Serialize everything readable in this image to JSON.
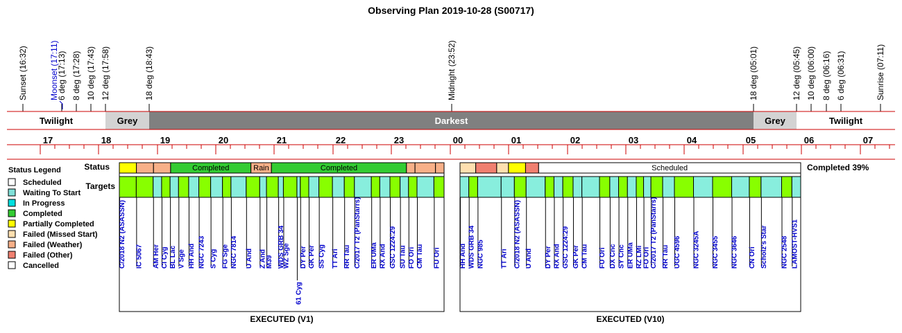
{
  "title": "Observing Plan 2019-10-28 (S00717)",
  "colors": {
    "scheduled": "#ffffff",
    "waiting": "#80e0d8",
    "in_progress": "#00e0e0",
    "completed": "#33cc33",
    "partial": "#ffff00",
    "failed_missed": "#ffe0b0",
    "failed_weather": "#f8b088",
    "failed_other": "#f08070",
    "cancelled": "#ffffff",
    "target_lime": "#88ff00",
    "target_teal": "#88eedd",
    "twilight": "#ffffff",
    "grey": "#d3d3d3",
    "darkest": "#808080",
    "timeline_line": "#cc0000",
    "target_text": "#0000cc"
  },
  "events": [
    {
      "label": "Sunset (16:32)",
      "type": "black"
    },
    {
      "label": "Moonset (17:11)",
      "type": "blue"
    },
    {
      "label": "6 deg (17:13)",
      "type": "black"
    },
    {
      "label": "8 deg (17:28)",
      "type": "black"
    },
    {
      "label": "10 deg (17:43)",
      "type": "black"
    },
    {
      "label": "12 deg (17:58)",
      "type": "black"
    },
    {
      "label": "18 deg (18:43)",
      "type": "black"
    },
    {
      "label": "Midnight (23:52)",
      "type": "black"
    },
    {
      "label": "18 deg (05:01)",
      "type": "black"
    },
    {
      "label": "12 deg (05:45)",
      "type": "black"
    },
    {
      "label": "10 deg (06:00)",
      "type": "black"
    },
    {
      "label": "8 deg (06:16)",
      "type": "black"
    },
    {
      "label": "6 deg (06:31)",
      "type": "black"
    },
    {
      "label": "Sunrise (07:11)",
      "type": "black"
    }
  ],
  "bands": [
    {
      "label": "Twilight",
      "kind": "twilight"
    },
    {
      "label": "Grey",
      "kind": "grey"
    },
    {
      "label": "Darkest",
      "kind": "darkest"
    },
    {
      "label": "Grey",
      "kind": "grey"
    },
    {
      "label": "Twilight",
      "kind": "twilight"
    }
  ],
  "hours": [
    "17",
    "18",
    "19",
    "20",
    "21",
    "22",
    "23",
    "00",
    "01",
    "02",
    "03",
    "04",
    "05",
    "06",
    "07"
  ],
  "row_labels": {
    "status": "Status",
    "targets": "Targets"
  },
  "legend": {
    "title": "Status Legend",
    "items": [
      {
        "label": "Scheduled",
        "color": "#ffffff"
      },
      {
        "label": "Waiting To Start",
        "color": "#80e0d8"
      },
      {
        "label": "In Progress",
        "color": "#00e0e0"
      },
      {
        "label": "Completed",
        "color": "#33cc33"
      },
      {
        "label": "Partially Completed",
        "color": "#ffff00"
      },
      {
        "label": "Failed (Missed Start)",
        "color": "#ffe0b0"
      },
      {
        "label": "Failed (Weather)",
        "color": "#f8b088"
      },
      {
        "label": "Failed (Other)",
        "color": "#f08070"
      },
      {
        "label": "Cancelled",
        "color": "#ffffff"
      }
    ]
  },
  "completed_text": "Completed 39%",
  "panels": [
    {
      "title": "EXECUTED (V1)",
      "status": [
        {
          "w": 1,
          "status": "partial",
          "label": ""
        },
        {
          "w": 1,
          "status": "failed_weather",
          "label": ""
        },
        {
          "w": 1,
          "status": "failed_weather",
          "label": ""
        },
        {
          "w": 4.7,
          "status": "completed",
          "label": "Completed"
        },
        {
          "w": 1.2,
          "status": "failed_weather",
          "label": "Rain"
        },
        {
          "w": 7.9,
          "status": "completed",
          "label": "Completed"
        },
        {
          "w": 0.5,
          "status": "failed_weather",
          "label": ""
        },
        {
          "w": 1.2,
          "status": "failed_weather",
          "label": ""
        },
        {
          "w": 0.5,
          "status": "failed_weather",
          "label": ""
        }
      ],
      "targets": [
        {
          "w": 1,
          "color": "target_lime",
          "name": "C/2018 N2 (ASASSN)"
        },
        {
          "w": 1,
          "color": "target_lime",
          "name": "IC 5067"
        },
        {
          "w": 0.5,
          "color": "target_teal",
          "name": "AM Her"
        },
        {
          "w": 0.5,
          "color": "target_lime",
          "name": "CI Cyg"
        },
        {
          "w": 0.5,
          "color": "target_teal",
          "name": "BL Lac"
        },
        {
          "w": 0.6,
          "color": "target_lime",
          "name": "V Sge"
        },
        {
          "w": 0.6,
          "color": "target_teal",
          "name": "HH And"
        },
        {
          "w": 0.7,
          "color": "target_lime",
          "name": "NGC 7243"
        },
        {
          "w": 0.7,
          "color": "target_teal",
          "name": "S Cyg"
        },
        {
          "w": 0.5,
          "color": "target_lime",
          "name": "FG Sge"
        },
        {
          "w": 0.9,
          "color": "target_teal",
          "name": "NGC 7814"
        },
        {
          "w": 0.8,
          "color": "target_lime",
          "name": "U And"
        },
        {
          "w": 0.4,
          "color": "target_teal",
          "name": "Z And"
        },
        {
          "w": 0.7,
          "color": "target_lime",
          "name": "M39"
        },
        {
          "w": 0.3,
          "color": "target_teal",
          "name": "WDS GRB 34"
        },
        {
          "w": 0.8,
          "color": "target_lime",
          "name": "WZ Sge"
        },
        {
          "w": 0.2,
          "color": "target_teal",
          "name": "61 Cyg",
          "long": true
        },
        {
          "w": 0.5,
          "color": "target_lime",
          "name": "DY Per"
        },
        {
          "w": 0.6,
          "color": "target_teal",
          "name": "GK Per"
        },
        {
          "w": 0.8,
          "color": "target_lime",
          "name": "SS Cyg"
        },
        {
          "w": 0.7,
          "color": "target_teal",
          "name": "TT Ari"
        },
        {
          "w": 0.6,
          "color": "target_lime",
          "name": "RR Tau"
        },
        {
          "w": 1,
          "color": "target_teal",
          "name": "C/2017 T2 (PanStarrs)"
        },
        {
          "w": 0.5,
          "color": "target_lime",
          "name": "ER UMa"
        },
        {
          "w": 0.6,
          "color": "target_teal",
          "name": "RX And"
        },
        {
          "w": 0.6,
          "color": "target_lime",
          "name": "GSC 1224:29"
        },
        {
          "w": 0.5,
          "color": "target_teal",
          "name": "SU Tau"
        },
        {
          "w": 0.5,
          "color": "target_lime",
          "name": "FO Ori"
        },
        {
          "w": 1,
          "color": "target_teal",
          "name": "CM Tau"
        },
        {
          "w": 0.6,
          "color": "target_lime",
          "name": "FU Ori"
        }
      ]
    },
    {
      "title": "EXECUTED (V10)",
      "status": [
        {
          "w": 1.2,
          "status": "failed_missed",
          "label": ""
        },
        {
          "w": 1.6,
          "status": "failed_other",
          "label": ""
        },
        {
          "w": 0.9,
          "status": "failed_missed",
          "label": ""
        },
        {
          "w": 1.3,
          "status": "partial",
          "label": ""
        },
        {
          "w": 1,
          "status": "failed_other",
          "label": ""
        },
        {
          "w": 20,
          "status": "scheduled",
          "label": "Scheduled"
        }
      ],
      "targets": [
        {
          "w": 0.6,
          "color": "target_teal",
          "name": "HH And"
        },
        {
          "w": 0.6,
          "color": "target_lime",
          "name": "WDS GRB 34"
        },
        {
          "w": 1.6,
          "color": "target_teal",
          "name": "NGC 985"
        },
        {
          "w": 0.9,
          "color": "target_teal",
          "name": "TT Ari"
        },
        {
          "w": 0.8,
          "color": "target_lime",
          "name": "C/2018 N2 (ASASSN)"
        },
        {
          "w": 1.3,
          "color": "target_teal",
          "name": "U And"
        },
        {
          "w": 0.6,
          "color": "target_lime",
          "name": "DY Per"
        },
        {
          "w": 0.6,
          "color": "target_teal",
          "name": "RX And"
        },
        {
          "w": 0.7,
          "color": "target_lime",
          "name": "GSC 1224:29"
        },
        {
          "w": 0.6,
          "color": "target_teal",
          "name": "GK Per"
        },
        {
          "w": 1.2,
          "color": "target_teal",
          "name": "CM Tau"
        },
        {
          "w": 0.7,
          "color": "target_lime",
          "name": "FU Ori"
        },
        {
          "w": 0.6,
          "color": "target_teal",
          "name": "DX Cnc"
        },
        {
          "w": 0.6,
          "color": "target_lime",
          "name": "SY Cnc"
        },
        {
          "w": 0.6,
          "color": "target_teal",
          "name": "ER UMa"
        },
        {
          "w": 0.5,
          "color": "target_lime",
          "name": "RZ LMi"
        },
        {
          "w": 0.5,
          "color": "target_teal",
          "name": "FO Ori"
        },
        {
          "w": 0.8,
          "color": "target_lime",
          "name": "C/2017 T2 (PanStarrs)"
        },
        {
          "w": 0.8,
          "color": "target_teal",
          "name": "RR Tau"
        },
        {
          "w": 1.3,
          "color": "target_lime",
          "name": "UGC 4596"
        },
        {
          "w": 1.3,
          "color": "target_teal",
          "name": "NGC 3245A"
        },
        {
          "w": 1.3,
          "color": "target_lime",
          "name": "NGC 3455"
        },
        {
          "w": 1.2,
          "color": "target_teal",
          "name": "NGC 3646"
        },
        {
          "w": 0.8,
          "color": "target_lime",
          "name": "CN Ori"
        },
        {
          "w": 1.4,
          "color": "target_teal",
          "name": "Scholz's Star"
        },
        {
          "w": 0.7,
          "color": "target_lime",
          "name": "NGC 2548"
        },
        {
          "w": 0.6,
          "color": "target_teal",
          "name": "LAMOST-HVS1"
        }
      ]
    }
  ]
}
